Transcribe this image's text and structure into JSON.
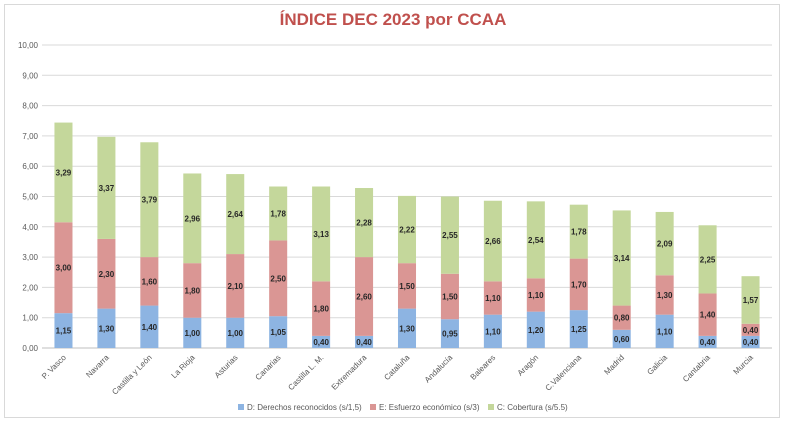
{
  "chart_data": {
    "type": "bar",
    "stacked": true,
    "title": "ÍNDICE DEC 2023 por CCAA",
    "title_color": "#c0504d",
    "ylim": [
      0,
      10
    ],
    "yticks": [
      "0,00",
      "1,00",
      "2,00",
      "3,00",
      "4,00",
      "5,00",
      "6,00",
      "7,00",
      "8,00",
      "9,00",
      "10,00"
    ],
    "grid": true,
    "legend_position": "bottom",
    "categories": [
      "P. Vasco",
      "Navarra",
      "Castilla y León",
      "La Rioja",
      "Asturias",
      "Canarias",
      "Castilla L. M.",
      "Extremadura",
      "Cataluña",
      "Andalucía",
      "Baleares",
      "Aragón",
      "C.Valenciana",
      "Madrid",
      "Galicia",
      "Cantabria",
      "Murcia"
    ],
    "series": [
      {
        "name": "D: Derechos reconocidos (s/1,5)",
        "color": "#8db4e2",
        "values": [
          1.15,
          1.3,
          1.4,
          1.0,
          1.0,
          1.05,
          0.4,
          0.4,
          1.3,
          0.95,
          1.1,
          1.2,
          1.25,
          0.6,
          1.1,
          0.4,
          0.4
        ],
        "labels": [
          "1,15",
          "1,30",
          "1,40",
          "1,00",
          "1,00",
          "1,05",
          "0,40",
          "0,40",
          "1,30",
          "0,95",
          "1,10",
          "1,20",
          "1,25",
          "0,60",
          "1,10",
          "0,40",
          "0,40"
        ]
      },
      {
        "name": "E: Esfuerzo económico (s/3)",
        "color": "#da9694",
        "values": [
          3.0,
          2.3,
          1.6,
          1.8,
          2.1,
          2.5,
          1.8,
          2.6,
          1.5,
          1.5,
          1.1,
          1.1,
          1.7,
          0.8,
          1.3,
          1.4,
          0.4
        ],
        "labels": [
          "3,00",
          "2,30",
          "1,60",
          "1,80",
          "2,10",
          "2,50",
          "1,80",
          "2,60",
          "1,50",
          "1,50",
          "1,10",
          "1,10",
          "1,70",
          "0,80",
          "1,30",
          "1,40",
          "0,40"
        ]
      },
      {
        "name": "C: Cobertura (s/5.5)",
        "color": "#c4d79b",
        "values": [
          3.29,
          3.37,
          3.79,
          2.96,
          2.64,
          1.78,
          3.13,
          2.28,
          2.22,
          2.55,
          2.66,
          2.54,
          1.78,
          3.14,
          2.09,
          2.25,
          1.57
        ],
        "labels": [
          "3,29",
          "3,37",
          "3,79",
          "2,96",
          "2,64",
          "1,78",
          "3,13",
          "2,28",
          "2,22",
          "2,55",
          "2,66",
          "2,54",
          "1,78",
          "3,14",
          "2,09",
          "2,25",
          "1,57"
        ]
      }
    ]
  }
}
